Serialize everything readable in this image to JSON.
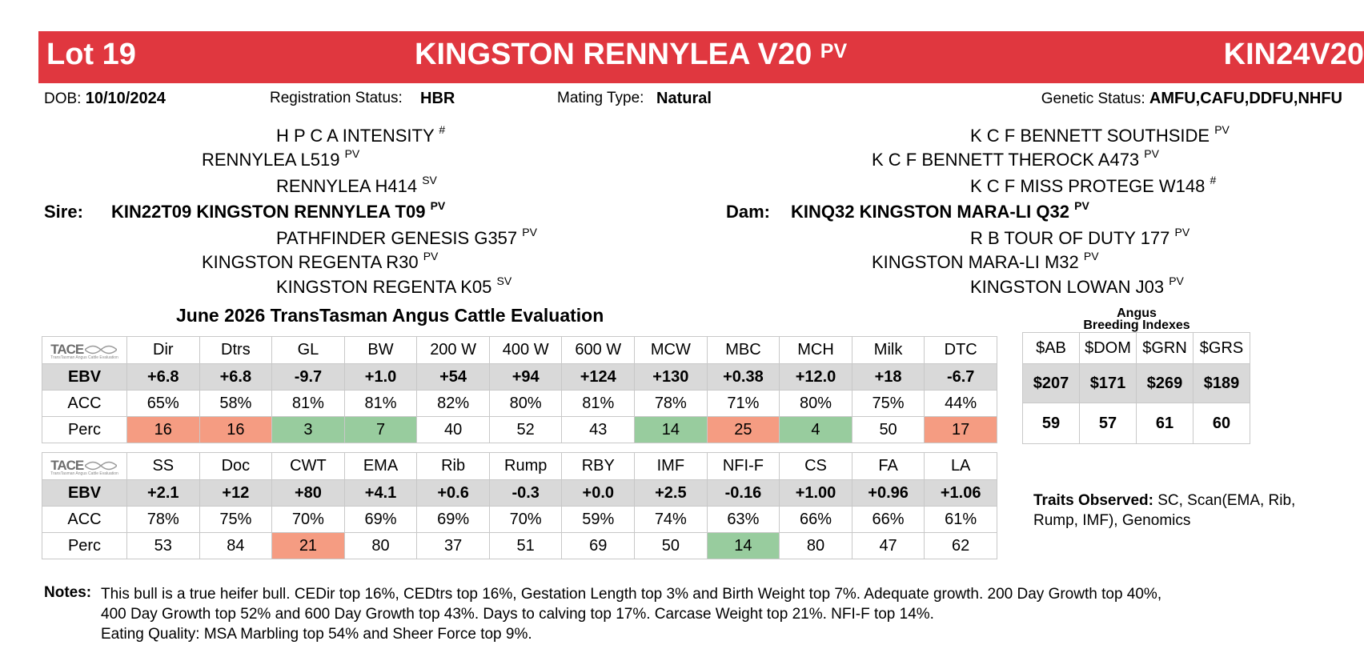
{
  "header": {
    "lot": "Lot 19",
    "name": "KINGSTON RENNYLEA V20",
    "name_status": "PV",
    "ident": "KIN24V20"
  },
  "info": {
    "dob_label": "DOB:",
    "dob": "10/10/2024",
    "reg_label": "Registration Status:",
    "reg": "HBR",
    "mating_label": "Mating Type:",
    "mating": "Natural",
    "genetic_label": "Genetic Status:",
    "genetic": "AMFU,CAFU,DDFU,NHFU"
  },
  "pedigree": {
    "sire_label": "Sire:",
    "sire": "KIN22T09 KINGSTON RENNYLEA T09",
    "sire_status": "PV",
    "dam_label": "Dam:",
    "dam": "KINQ32 KINGSTON MARA-LI Q32",
    "dam_status": "PV",
    "sire_side": [
      {
        "name": "H P C A INTENSITY",
        "status": "#"
      },
      {
        "name": "RENNYLEA L519",
        "status": "PV"
      },
      {
        "name": "RENNYLEA H414",
        "status": "SV"
      },
      {
        "name": "PATHFINDER GENESIS G357",
        "status": "PV"
      },
      {
        "name": "KINGSTON REGENTA R30",
        "status": "PV"
      },
      {
        "name": "KINGSTON REGENTA K05",
        "status": "SV"
      }
    ],
    "dam_side": [
      {
        "name": "K C F BENNETT SOUTHSIDE",
        "status": "PV"
      },
      {
        "name": "K C F BENNETT THEROCK A473",
        "status": "PV"
      },
      {
        "name": "K C F MISS PROTEGE W148",
        "status": "#"
      },
      {
        "name": "R B TOUR OF DUTY 177",
        "status": "PV"
      },
      {
        "name": "KINGSTON MARA-LI M32",
        "status": "PV"
      },
      {
        "name": "KINGSTON LOWAN J03",
        "status": "PV"
      }
    ]
  },
  "evaluation": {
    "title": "June 2026 TransTasman Angus Cattle Evaluation",
    "logo_text": "TACE",
    "logo_sub": "TransTasman Angus Cattle Evaluation",
    "row_labels": [
      "EBV",
      "ACC",
      "Perc"
    ],
    "table1": {
      "headers": [
        "Dir",
        "Dtrs",
        "GL",
        "BW",
        "200 W",
        "400 W",
        "600 W",
        "MCW",
        "MBC",
        "MCH",
        "Milk",
        "DTC"
      ],
      "ebv": [
        "+6.8",
        "+6.8",
        "-9.7",
        "+1.0",
        "+54",
        "+94",
        "+124",
        "+130",
        "+0.38",
        "+12.0",
        "+18",
        "-6.7"
      ],
      "acc": [
        "65%",
        "58%",
        "81%",
        "81%",
        "82%",
        "80%",
        "81%",
        "78%",
        "71%",
        "80%",
        "75%",
        "44%"
      ],
      "perc": [
        "16",
        "16",
        "3",
        "7",
        "40",
        "52",
        "43",
        "14",
        "25",
        "4",
        "50",
        "17"
      ],
      "perc_colors": [
        "red",
        "red",
        "green",
        "green",
        "",
        "",
        "",
        "green",
        "red",
        "green",
        "",
        "red"
      ]
    },
    "table2": {
      "headers": [
        "SS",
        "Doc",
        "CWT",
        "EMA",
        "Rib",
        "Rump",
        "RBY",
        "IMF",
        "NFI-F",
        "CS",
        "FA",
        "LA"
      ],
      "ebv": [
        "+2.1",
        "+12",
        "+80",
        "+4.1",
        "+0.6",
        "-0.3",
        "+0.0",
        "+2.5",
        "-0.16",
        "+1.00",
        "+0.96",
        "+1.06"
      ],
      "acc": [
        "78%",
        "75%",
        "70%",
        "69%",
        "69%",
        "70%",
        "59%",
        "74%",
        "63%",
        "66%",
        "66%",
        "61%"
      ],
      "perc": [
        "53",
        "84",
        "21",
        "80",
        "37",
        "51",
        "69",
        "50",
        "14",
        "80",
        "47",
        "62"
      ],
      "perc_colors": [
        "",
        "",
        "red",
        "",
        "",
        "",
        "",
        "",
        "green",
        "",
        "",
        ""
      ]
    },
    "colors": {
      "red": "#f59c82",
      "green": "#98cc9e",
      "banner": "#e0373f"
    }
  },
  "indexes": {
    "title_line1": "Angus",
    "title_line2": "Breeding Indexes",
    "headers": [
      "$AB",
      "$DOM",
      "$GRN",
      "$GRS"
    ],
    "values": [
      "$207",
      "$171",
      "$269",
      "$189"
    ],
    "perc": [
      "59",
      "57",
      "61",
      "60"
    ]
  },
  "traits": {
    "label": "Traits Observed:",
    "line1": "SC, Scan(EMA, Rib,",
    "line2": "Rump, IMF), Genomics"
  },
  "notes": {
    "label": "Notes:",
    "line1": "This bull is a true heifer bull. CEDir top 16%, CEDtrs top 16%, Gestation Length top 3% and Birth Weight top 7%. Adequate growth. 200 Day Growth top 40%,",
    "line2": "400 Day Growth top 52% and 600 Day Growth top 43%. Days to calving top 17%. Carcase Weight top 21%. NFI-F top 14%.",
    "line3": "Eating Quality: MSA Marbling top 54% and Sheer Force top 9%."
  }
}
